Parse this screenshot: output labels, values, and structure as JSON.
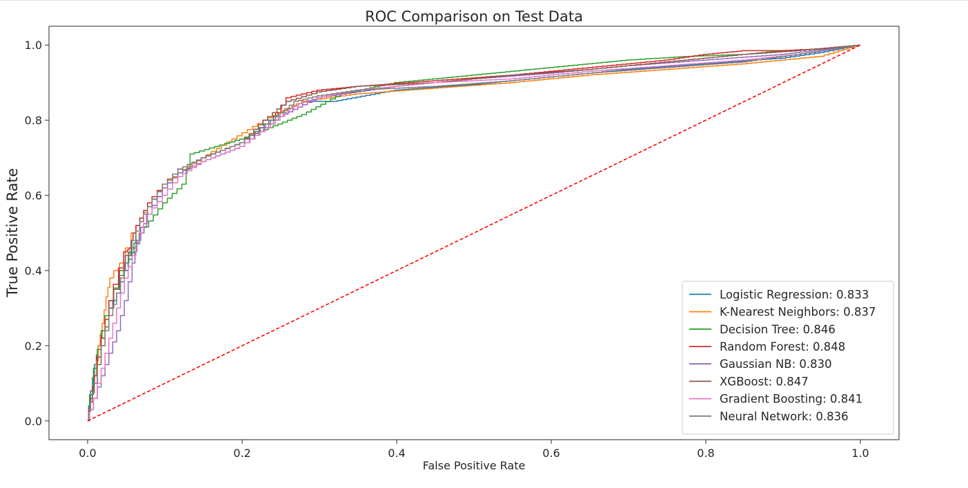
{
  "chart_data": {
    "type": "line",
    "title": "ROC Comparison on Test Data",
    "xlabel": "False Positive Rate",
    "ylabel": "True Positive Rate",
    "xlim": [
      -0.05,
      1.05
    ],
    "ylim": [
      -0.05,
      1.05
    ],
    "xticks": [
      0.0,
      0.2,
      0.4,
      0.6,
      0.8,
      1.0
    ],
    "yticks": [
      0.0,
      0.2,
      0.4,
      0.6,
      0.8,
      1.0
    ],
    "xtick_labels": [
      "0.0",
      "0.2",
      "0.4",
      "0.6",
      "0.8",
      "1.0"
    ],
    "ytick_labels": [
      "0.0",
      "0.2",
      "0.4",
      "0.6",
      "0.8",
      "1.0"
    ],
    "grid": false,
    "legend_position": "bottom-right",
    "series": [
      {
        "name": "Logistic Regression: 0.833",
        "color": "#1f77b4",
        "x": [
          0,
          0.005,
          0.01,
          0.015,
          0.02,
          0.03,
          0.04,
          0.05,
          0.06,
          0.07,
          0.08,
          0.1,
          0.12,
          0.15,
          0.2,
          0.25,
          0.28,
          0.32,
          0.4,
          0.5,
          0.6,
          0.7,
          0.8,
          0.9,
          0.95,
          1
        ],
        "y": [
          0,
          0.08,
          0.15,
          0.2,
          0.24,
          0.3,
          0.34,
          0.4,
          0.46,
          0.5,
          0.55,
          0.62,
          0.66,
          0.7,
          0.74,
          0.82,
          0.85,
          0.85,
          0.88,
          0.895,
          0.915,
          0.935,
          0.95,
          0.965,
          0.98,
          1
        ]
      },
      {
        "name": "K-Nearest Neighbors: 0.837",
        "color": "#ff7f0e",
        "x": [
          0,
          0.005,
          0.01,
          0.015,
          0.02,
          0.025,
          0.03,
          0.045,
          0.06,
          0.07,
          0.08,
          0.1,
          0.12,
          0.15,
          0.19,
          0.23,
          0.28,
          0.35,
          0.45,
          0.55,
          0.65,
          0.75,
          0.85,
          0.95,
          1
        ],
        "y": [
          0,
          0.06,
          0.12,
          0.2,
          0.26,
          0.33,
          0.38,
          0.42,
          0.5,
          0.54,
          0.57,
          0.63,
          0.66,
          0.7,
          0.75,
          0.8,
          0.85,
          0.87,
          0.885,
          0.9,
          0.92,
          0.935,
          0.95,
          0.97,
          1
        ]
      },
      {
        "name": "Decision Tree: 0.846",
        "color": "#2ca02c",
        "x": [
          0,
          0.01,
          0.02,
          0.03,
          0.05,
          0.07,
          0.1,
          0.125,
          0.135,
          0.2,
          0.28,
          0.33,
          0.4,
          0.5,
          0.6,
          0.7,
          0.78,
          0.85,
          0.9,
          0.95,
          1
        ],
        "y": [
          0,
          0.14,
          0.24,
          0.32,
          0.42,
          0.5,
          0.58,
          0.63,
          0.71,
          0.75,
          0.815,
          0.87,
          0.9,
          0.92,
          0.94,
          0.96,
          0.97,
          0.975,
          0.985,
          0.99,
          1
        ]
      },
      {
        "name": "Random Forest: 0.848",
        "color": "#d62728",
        "x": [
          0,
          0.005,
          0.01,
          0.02,
          0.03,
          0.05,
          0.055,
          0.06,
          0.07,
          0.08,
          0.1,
          0.12,
          0.15,
          0.2,
          0.24,
          0.26,
          0.3,
          0.35,
          0.45,
          0.55,
          0.65,
          0.75,
          0.8,
          0.85,
          0.9,
          0.95,
          1
        ],
        "y": [
          0,
          0.06,
          0.12,
          0.22,
          0.32,
          0.45,
          0.46,
          0.5,
          0.54,
          0.58,
          0.63,
          0.67,
          0.7,
          0.74,
          0.8,
          0.86,
          0.88,
          0.89,
          0.905,
          0.92,
          0.94,
          0.96,
          0.975,
          0.985,
          0.985,
          0.99,
          1
        ]
      },
      {
        "name": "Gaussian NB: 0.830",
        "color": "#9467bd",
        "x": [
          0,
          0.01,
          0.02,
          0.03,
          0.04,
          0.05,
          0.06,
          0.065,
          0.08,
          0.1,
          0.12,
          0.15,
          0.2,
          0.25,
          0.3,
          0.4,
          0.5,
          0.6,
          0.7,
          0.8,
          0.9,
          1
        ],
        "y": [
          0,
          0.06,
          0.12,
          0.18,
          0.24,
          0.32,
          0.42,
          0.48,
          0.55,
          0.62,
          0.66,
          0.69,
          0.73,
          0.81,
          0.86,
          0.89,
          0.91,
          0.925,
          0.945,
          0.96,
          0.975,
          1
        ]
      },
      {
        "name": "XGBoost: 0.847",
        "color": "#8c564b",
        "x": [
          0,
          0.005,
          0.01,
          0.02,
          0.03,
          0.045,
          0.06,
          0.07,
          0.08,
          0.1,
          0.12,
          0.15,
          0.2,
          0.23,
          0.26,
          0.3,
          0.35,
          0.45,
          0.55,
          0.65,
          0.75,
          0.85,
          0.92,
          1
        ],
        "y": [
          0,
          0.05,
          0.1,
          0.2,
          0.3,
          0.4,
          0.48,
          0.53,
          0.57,
          0.63,
          0.67,
          0.7,
          0.74,
          0.8,
          0.85,
          0.875,
          0.89,
          0.9,
          0.92,
          0.935,
          0.955,
          0.975,
          0.985,
          1
        ]
      },
      {
        "name": "Gradient Boosting: 0.841",
        "color": "#e377c2",
        "x": [
          0,
          0.01,
          0.02,
          0.03,
          0.04,
          0.05,
          0.06,
          0.07,
          0.08,
          0.1,
          0.12,
          0.15,
          0.2,
          0.24,
          0.27,
          0.3,
          0.35,
          0.45,
          0.55,
          0.65,
          0.75,
          0.85,
          0.92,
          1
        ],
        "y": [
          0,
          0.06,
          0.14,
          0.22,
          0.3,
          0.38,
          0.44,
          0.5,
          0.55,
          0.6,
          0.65,
          0.69,
          0.73,
          0.79,
          0.84,
          0.86,
          0.88,
          0.9,
          0.91,
          0.93,
          0.945,
          0.96,
          0.975,
          1
        ]
      },
      {
        "name": "Neural Network: 0.836",
        "color": "#7f7f7f",
        "x": [
          0,
          0.005,
          0.01,
          0.02,
          0.03,
          0.04,
          0.05,
          0.06,
          0.07,
          0.08,
          0.1,
          0.12,
          0.15,
          0.2,
          0.24,
          0.27,
          0.3,
          0.35,
          0.45,
          0.55,
          0.65,
          0.75,
          0.85,
          0.92,
          1
        ],
        "y": [
          0,
          0.05,
          0.1,
          0.2,
          0.28,
          0.34,
          0.42,
          0.48,
          0.53,
          0.57,
          0.63,
          0.67,
          0.7,
          0.74,
          0.8,
          0.85,
          0.865,
          0.88,
          0.89,
          0.905,
          0.925,
          0.94,
          0.955,
          0.975,
          1
        ]
      }
    ],
    "reference_line": {
      "style": "dashed",
      "color": "#ff0000",
      "x": [
        0,
        1
      ],
      "y": [
        0,
        1
      ]
    }
  }
}
